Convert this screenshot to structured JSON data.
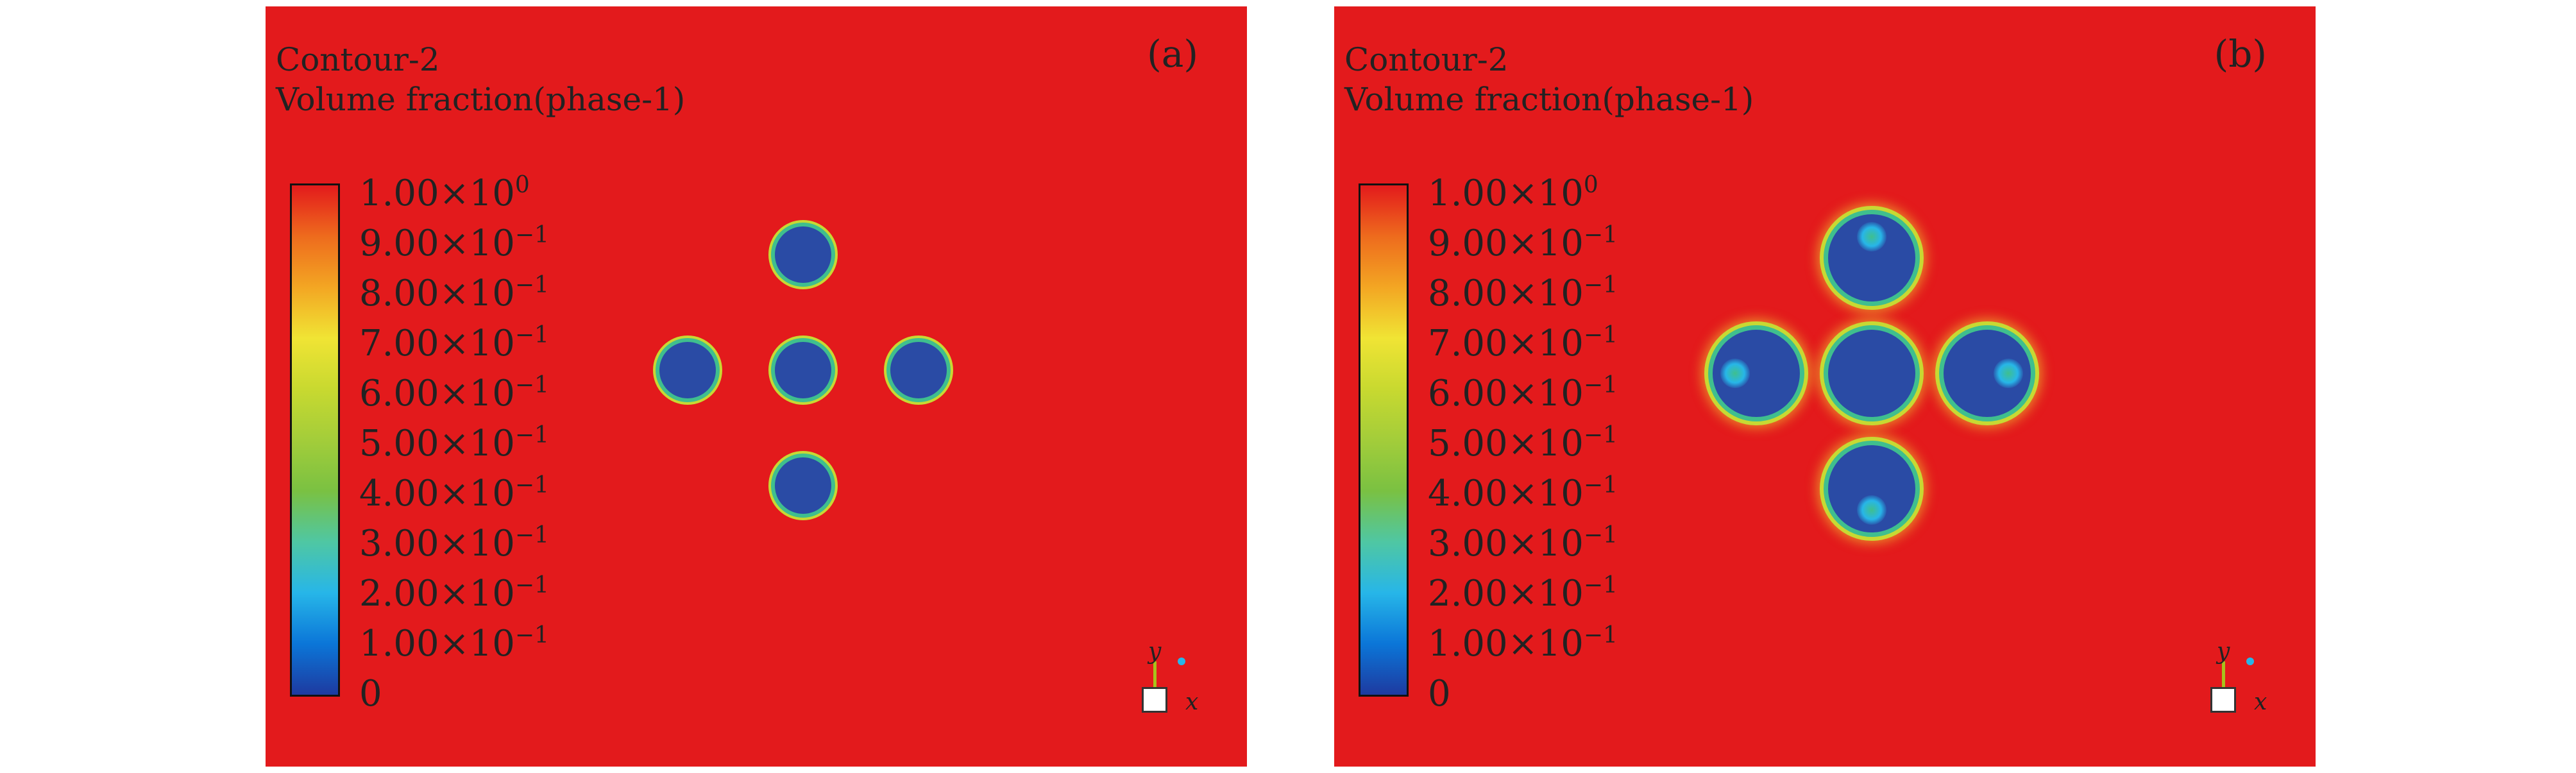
{
  "panels": [
    {
      "label": "(a)",
      "title": "Contour-2",
      "subtitle": "Volume fraction(phase-1)",
      "colorbar_ticks": [
        "1.00×10",
        "9.00×10",
        "8.00×10",
        "7.00×10",
        "6.00×10",
        "5.00×10",
        "4.00×10",
        "3.00×10",
        "2.00×10",
        "1.00×10",
        "0"
      ],
      "colorbar_exponents": [
        "0",
        "−1",
        "−1",
        "−1",
        "−1",
        "−1",
        "−1",
        "−1",
        "−1",
        "−1",
        ""
      ],
      "axis_x": "x",
      "axis_y": "y"
    },
    {
      "label": "(b)",
      "title": "Contour-2",
      "subtitle": "Volume fraction(phase-1)",
      "colorbar_ticks": [
        "1.00×10",
        "9.00×10",
        "8.00×10",
        "7.00×10",
        "6.00×10",
        "5.00×10",
        "4.00×10",
        "3.00×10",
        "2.00×10",
        "1.00×10",
        "0"
      ],
      "colorbar_exponents": [
        "0",
        "−1",
        "−1",
        "−1",
        "−1",
        "−1",
        "−1",
        "−1",
        "−1",
        "−1",
        ""
      ],
      "axis_x": "x",
      "axis_y": "y"
    }
  ],
  "colors": {
    "background": "#e31a1c",
    "droplet": "#2a4ba5",
    "interface": "#3fbf8e",
    "halo": "#c7d933"
  }
}
